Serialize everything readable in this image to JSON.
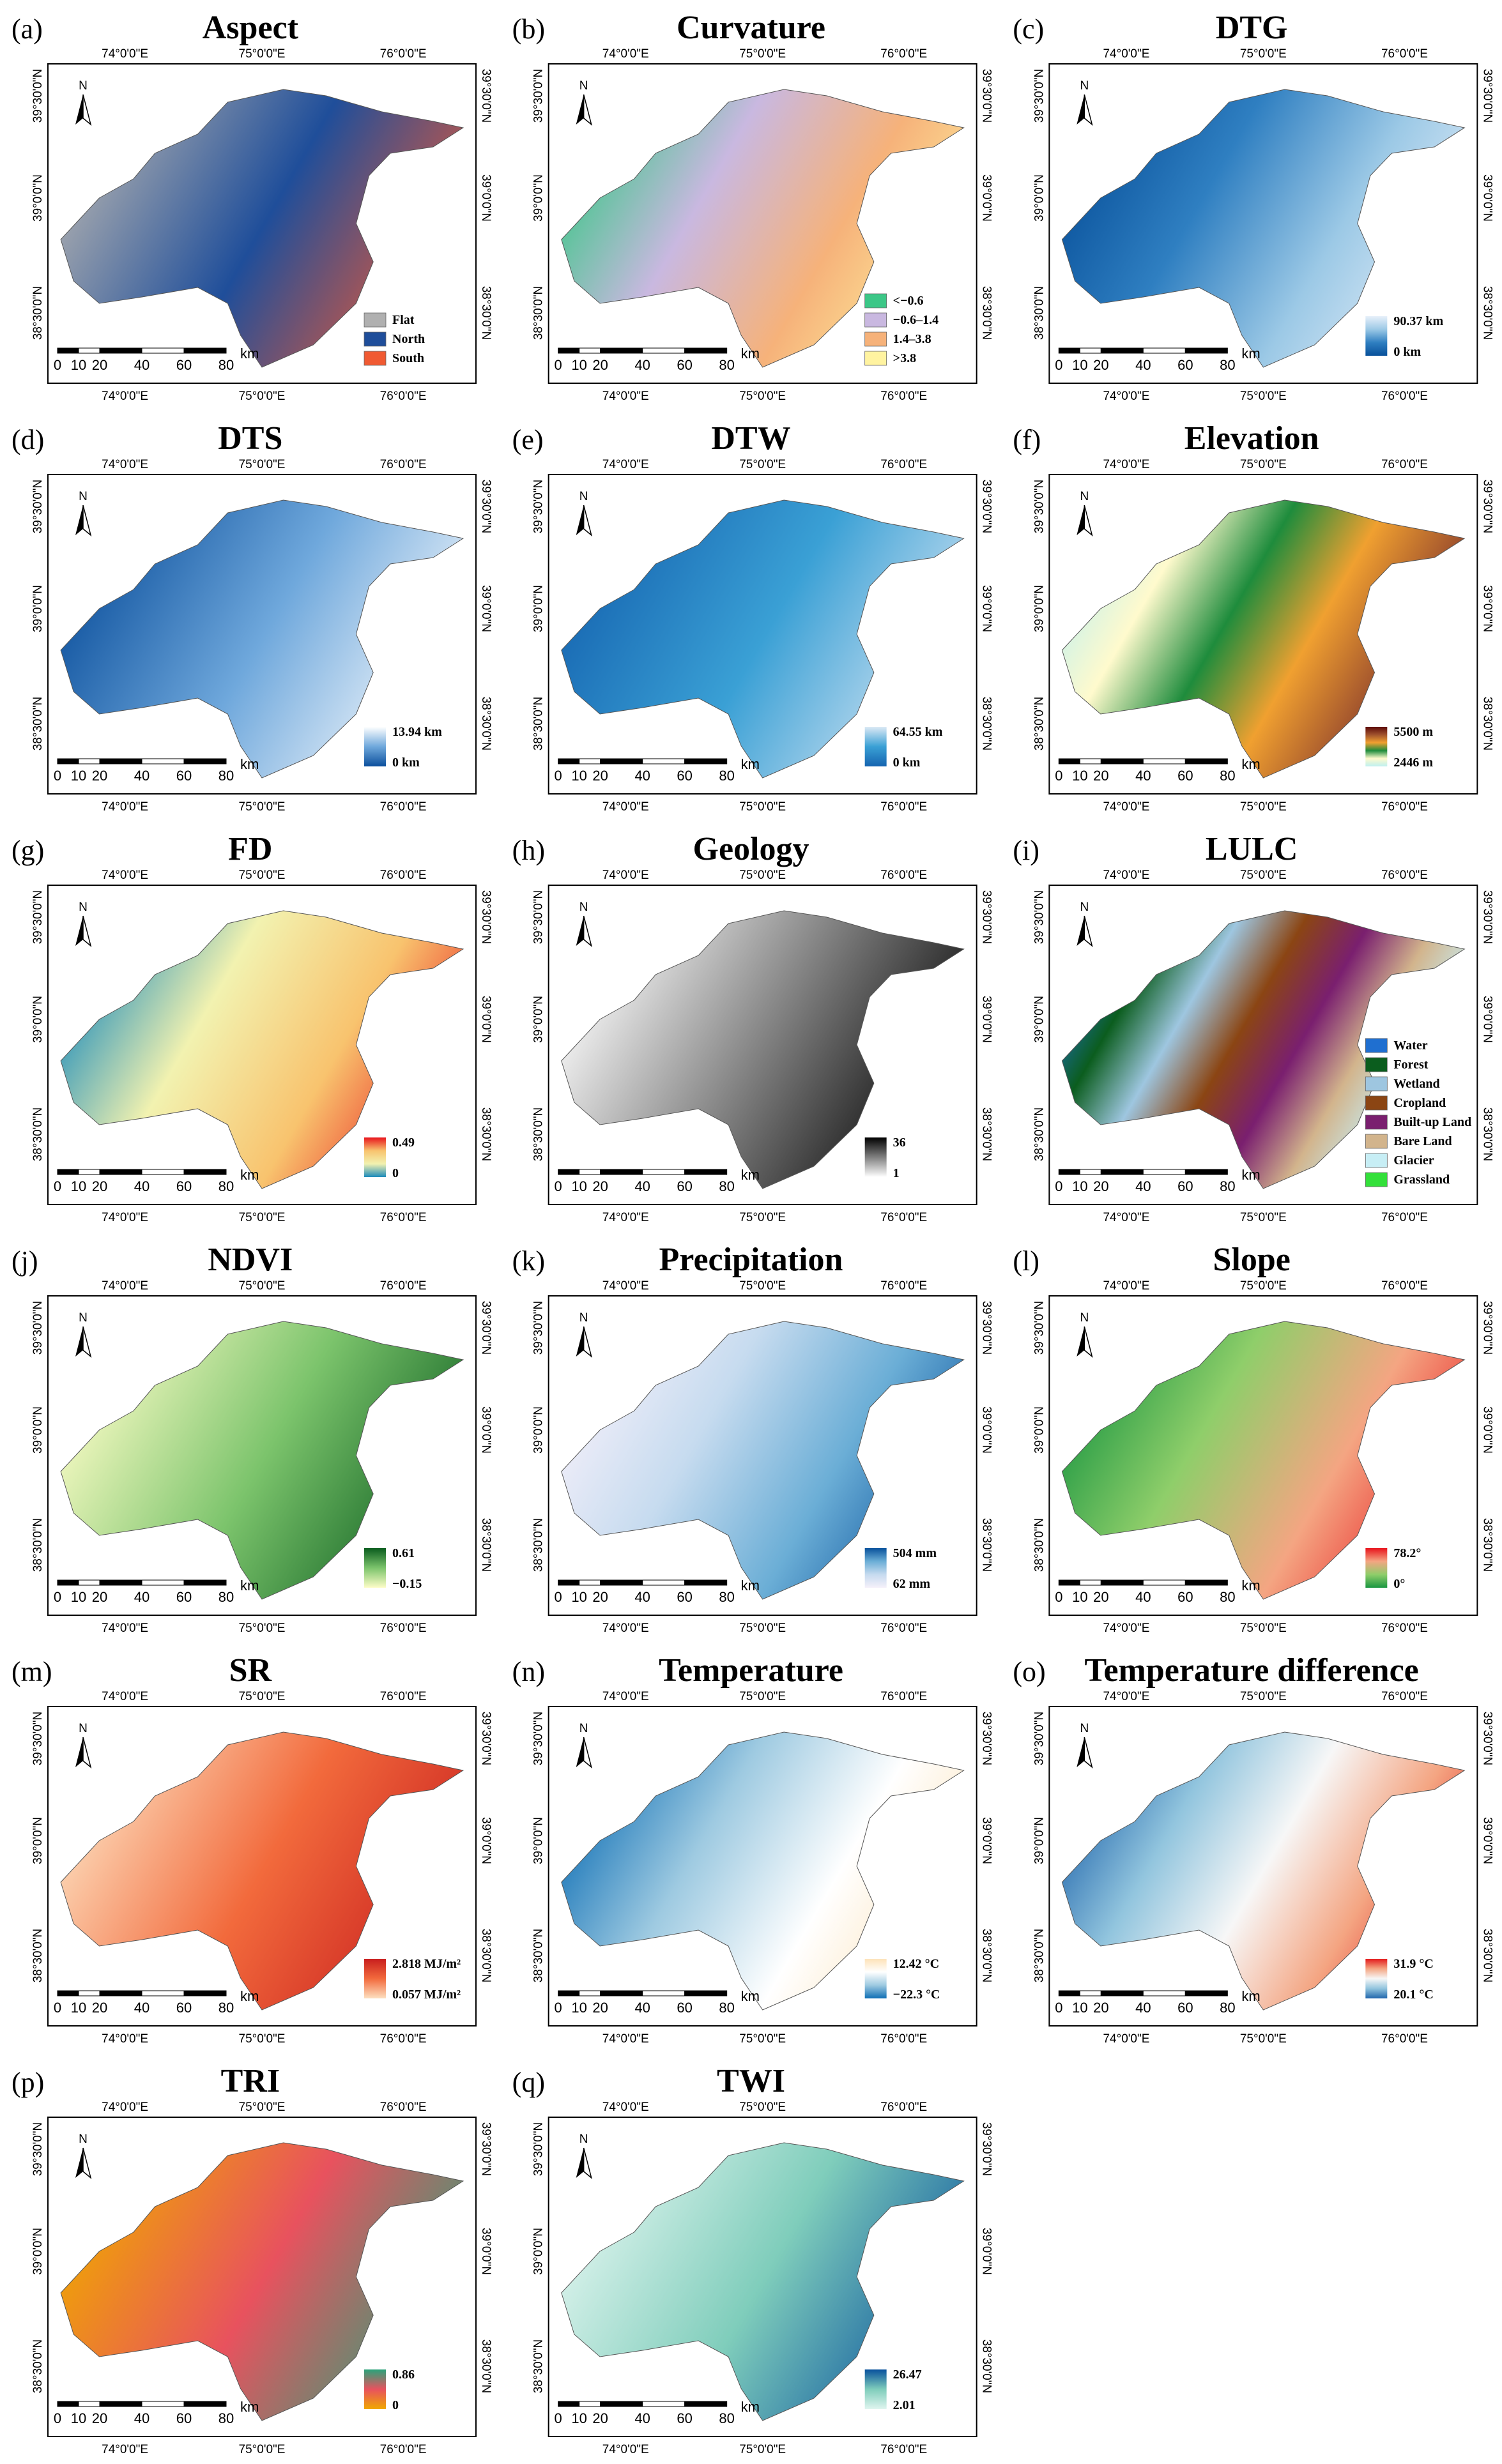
{
  "map_axes": {
    "x_labels": [
      "74°0'0\"E",
      "75°0'0\"E",
      "76°0'0\"E"
    ],
    "y_labels": [
      "39°30'0\"N",
      "39°0'0\"N",
      "38°30'0\"N"
    ]
  },
  "north": "N",
  "scale_bar": {
    "labels": [
      "0",
      "10",
      "20",
      "40",
      "60",
      "80"
    ],
    "unit": "km"
  },
  "panels": [
    {
      "letter": "(a)",
      "title": "Aspect",
      "legend": {
        "items": [
          {
            "label": "Flat",
            "color": "#b0b0b0"
          },
          {
            "label": "North",
            "color": "#1f4e9a"
          },
          {
            "label": "South",
            "color": "#f05a32"
          }
        ]
      }
    },
    {
      "letter": "(b)",
      "title": "Curvature",
      "legend": {
        "items": [
          {
            "label": "<−0.6",
            "color": "#3cc787"
          },
          {
            "label": "−0.6–1.4",
            "color": "#c9b8e0"
          },
          {
            "label": "1.4–3.8",
            "color": "#f6b27a"
          },
          {
            "label": ">3.8",
            "color": "#fff3a0"
          }
        ]
      }
    },
    {
      "letter": "(c)",
      "title": "DTG",
      "legend": {
        "high": "90.37 km",
        "low": "0 km",
        "colors": [
          "#e8f0fa",
          "#9cc9e6",
          "#2f7fc1",
          "#08509a"
        ]
      }
    },
    {
      "letter": "(d)",
      "title": "DTS",
      "legend": {
        "high": "13.94 km",
        "low": "0 km",
        "colors": [
          "#ffffff",
          "#6fa8dc",
          "#0b4f9c"
        ]
      }
    },
    {
      "letter": "(e)",
      "title": "DTW",
      "legend": {
        "high": "64.55 km",
        "low": "0 km",
        "colors": [
          "#dce9f5",
          "#3aa0d5",
          "#1564b0"
        ]
      }
    },
    {
      "letter": "(f)",
      "title": "Elevation",
      "legend": {
        "high": "5500 m",
        "low": "2446 m",
        "colors": [
          "#5c0a0a",
          "#a0522d",
          "#f0a030",
          "#1e8c3c",
          "#fffacd",
          "#bff0f0"
        ]
      }
    },
    {
      "letter": "(g)",
      "title": "FD",
      "legend": {
        "high": "0.49",
        "low": "0",
        "colors": [
          "#e8141c",
          "#f8c36e",
          "#f2f2b0",
          "#1b8bbb"
        ]
      }
    },
    {
      "letter": "(h)",
      "title": "Geology",
      "legend": {
        "high": "36",
        "low": "1",
        "colors": [
          "#000000",
          "#808080",
          "#ffffff"
        ]
      }
    },
    {
      "letter": "(i)",
      "title": "LULC",
      "legend": {
        "items": [
          {
            "label": "Water",
            "color": "#1f6fd0"
          },
          {
            "label": "Forest",
            "color": "#0b5d1e"
          },
          {
            "label": "Wetland",
            "color": "#9ec6e0"
          },
          {
            "label": "Cropland",
            "color": "#8b4513"
          },
          {
            "label": "Built-up Land",
            "color": "#7a1f6f"
          },
          {
            "label": "Bare Land",
            "color": "#d2b48c"
          },
          {
            "label": "Glacier",
            "color": "#c7eef5"
          },
          {
            "label": "Grassland",
            "color": "#33e03a"
          }
        ]
      }
    },
    {
      "letter": "(j)",
      "title": "NDVI",
      "legend": {
        "high": "0.61",
        "low": "−0.15",
        "colors": [
          "#0a5c1e",
          "#7cc46c",
          "#fdfdc8"
        ]
      }
    },
    {
      "letter": "(k)",
      "title": "Precipitation",
      "legend": {
        "high": "504 mm",
        "low": "62 mm",
        "colors": [
          "#08519c",
          "#6baed6",
          "#c6dbef",
          "#f5f0fa"
        ]
      }
    },
    {
      "letter": "(l)",
      "title": "Slope",
      "legend": {
        "high": "78.2°",
        "low": "0°",
        "colors": [
          "#e8141c",
          "#f4a582",
          "#8fce6a",
          "#1a9641"
        ]
      }
    },
    {
      "letter": "(m)",
      "title": "SR",
      "legend": {
        "high": "2.818 MJ/m²",
        "low": "0.057 MJ/m²",
        "colors": [
          "#c81e1e",
          "#f26a3c",
          "#fde0c0"
        ]
      }
    },
    {
      "letter": "(n)",
      "title": "Temperature",
      "legend": {
        "high": "12.42 °C",
        "low": "−22.3 °C",
        "colors": [
          "#fde2b8",
          "#ffffff",
          "#9ecae1",
          "#0f6fb5"
        ]
      }
    },
    {
      "letter": "(o)",
      "title": "Temperature difference",
      "legend": {
        "high": "31.9 °C",
        "low": "20.1 °C",
        "colors": [
          "#e31a1c",
          "#f4a582",
          "#f7f7f7",
          "#92c5de",
          "#2166ac"
        ]
      }
    },
    {
      "letter": "(p)",
      "title": "TRI",
      "legend": {
        "high": "0.86",
        "low": "0",
        "colors": [
          "#2aa37a",
          "#e8525e",
          "#f0a800"
        ]
      }
    },
    {
      "letter": "(q)",
      "title": "TWI",
      "legend": {
        "high": "26.47",
        "low": "2.01",
        "colors": [
          "#08519c",
          "#7fcdbb",
          "#e0f5ef"
        ]
      }
    }
  ]
}
